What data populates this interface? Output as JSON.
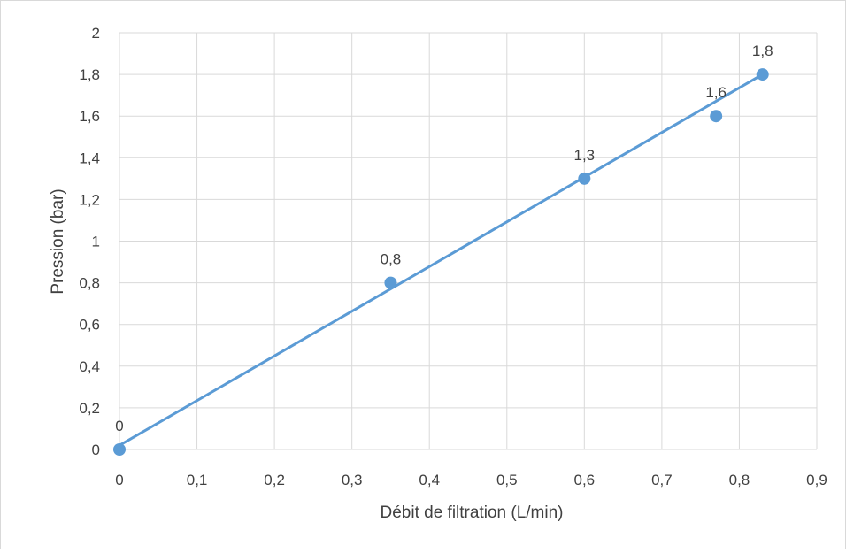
{
  "chart_data": {
    "type": "scatter",
    "title": "",
    "xlabel": "Débit de filtration (L/min)",
    "ylabel": "Pression (bar)",
    "xlim": [
      0,
      0.9
    ],
    "ylim": [
      0,
      2
    ],
    "x_ticks": [
      "0",
      "0,1",
      "0,2",
      "0,3",
      "0,4",
      "0,5",
      "0,6",
      "0,7",
      "0,8",
      "0,9"
    ],
    "y_ticks": [
      "0",
      "0,2",
      "0,4",
      "0,6",
      "0,8",
      "1",
      "1,2",
      "1,4",
      "1,6",
      "1,8",
      "2"
    ],
    "grid": true,
    "legend": "none",
    "series": [
      {
        "x": [
          0,
          0.35,
          0.6,
          0.77,
          0.83
        ],
        "y": [
          0,
          0.8,
          1.3,
          1.6,
          1.8
        ],
        "labels": [
          "0",
          "0,8",
          "1,3",
          "1,6",
          "1,8"
        ],
        "color": "#5b9bd5"
      }
    ],
    "trendline": {
      "type": "linear",
      "x": [
        0,
        0.83
      ],
      "y": [
        0.02,
        1.8
      ],
      "color": "#5b9bd5"
    }
  }
}
